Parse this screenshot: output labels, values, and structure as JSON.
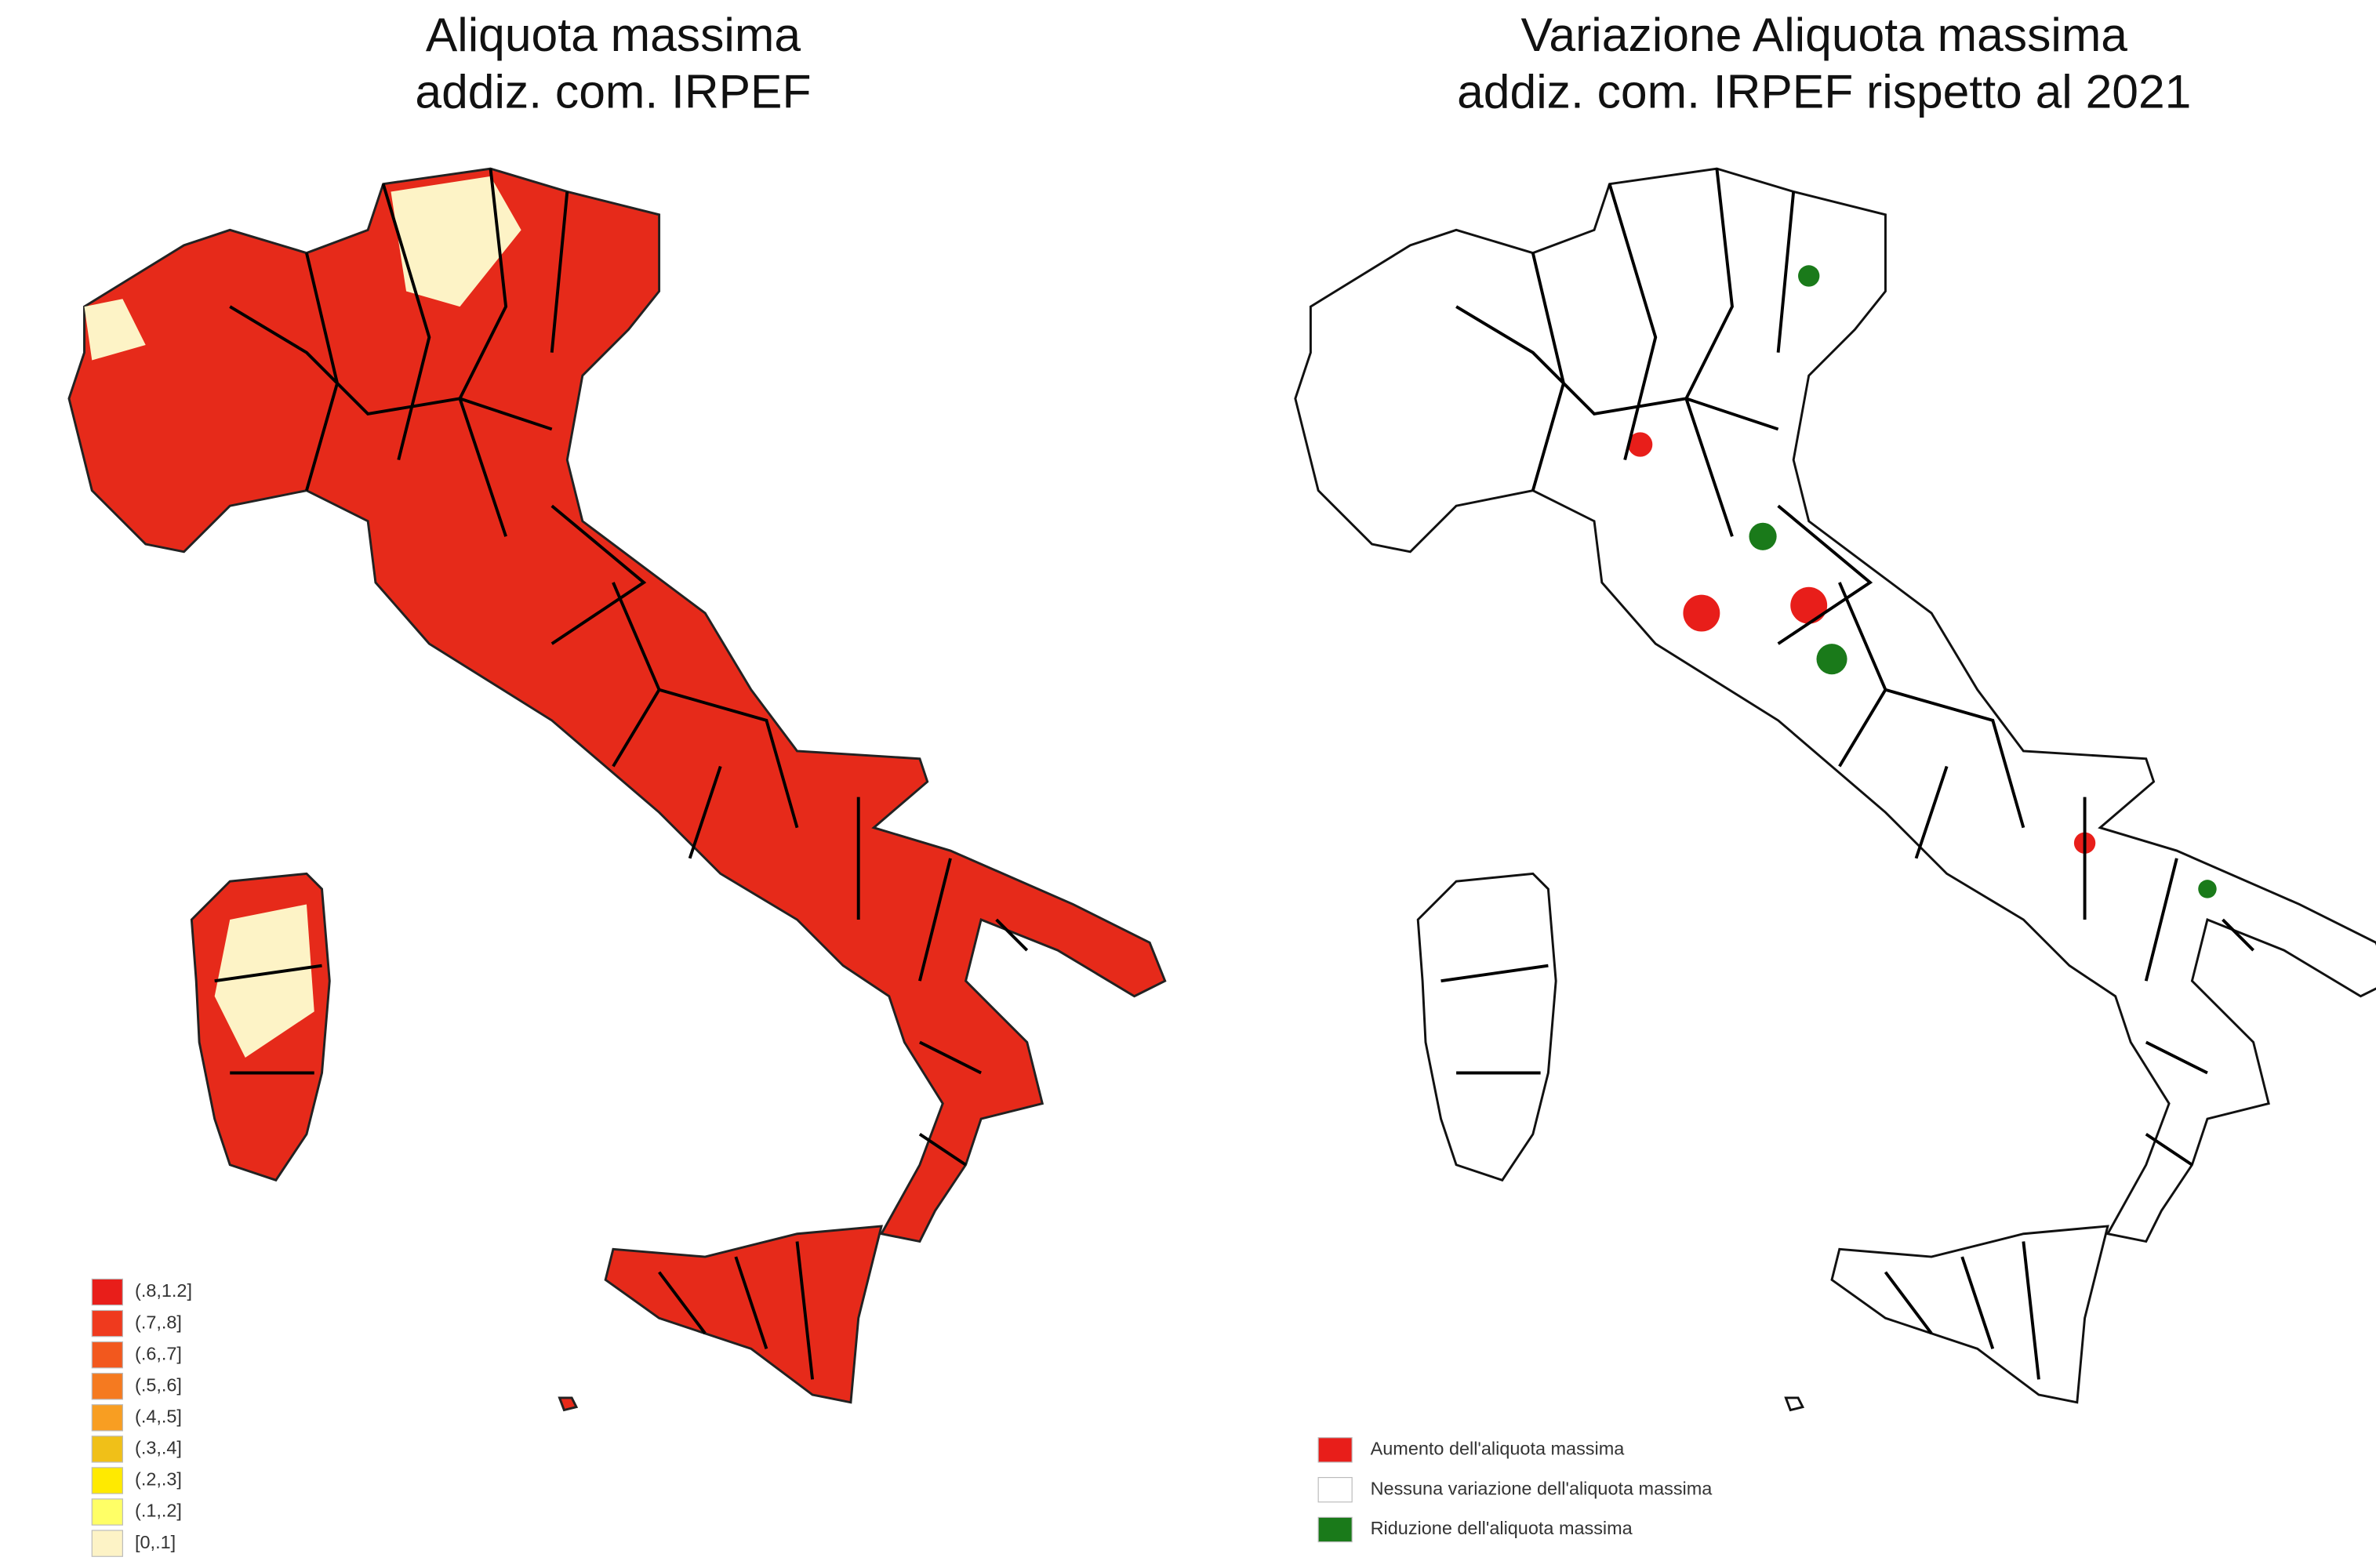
{
  "maps": [
    {
      "title": [
        "Aliquota massima",
        "addiz. com. IRPEF"
      ],
      "legend": [
        {
          "label": "(.8,1.2]",
          "color": "#e81e1a"
        },
        {
          "label": "(.7,.8]",
          "color": "#ef3a1e"
        },
        {
          "label": "(.6,.7]",
          "color": "#f2581e"
        },
        {
          "label": "(.5,.6]",
          "color": "#f57a20"
        },
        {
          "label": "(.4,.5]",
          "color": "#f89e22"
        },
        {
          "label": "(.3,.4]",
          "color": "#f0c018"
        },
        {
          "label": "(.2,.3]",
          "color": "#ffea00"
        },
        {
          "label": "(.1,.2]",
          "color": "#ffff66"
        },
        {
          "label": "[0,.1]",
          "color": "#fdf3c6"
        }
      ]
    },
    {
      "title": [
        "Variazione Aliquota massima",
        "addiz. com. IRPEF rispetto al 2021"
      ],
      "legend": [
        {
          "label": "Aumento dell'aliquota massima",
          "color": "#e81e1a"
        },
        {
          "label": "Nessuna variazione dell'aliquota massima",
          "color": "#ffffff"
        },
        {
          "label": "Riduzione dell'aliquota massima",
          "color": "#1a7a1a"
        }
      ]
    }
  ]
}
